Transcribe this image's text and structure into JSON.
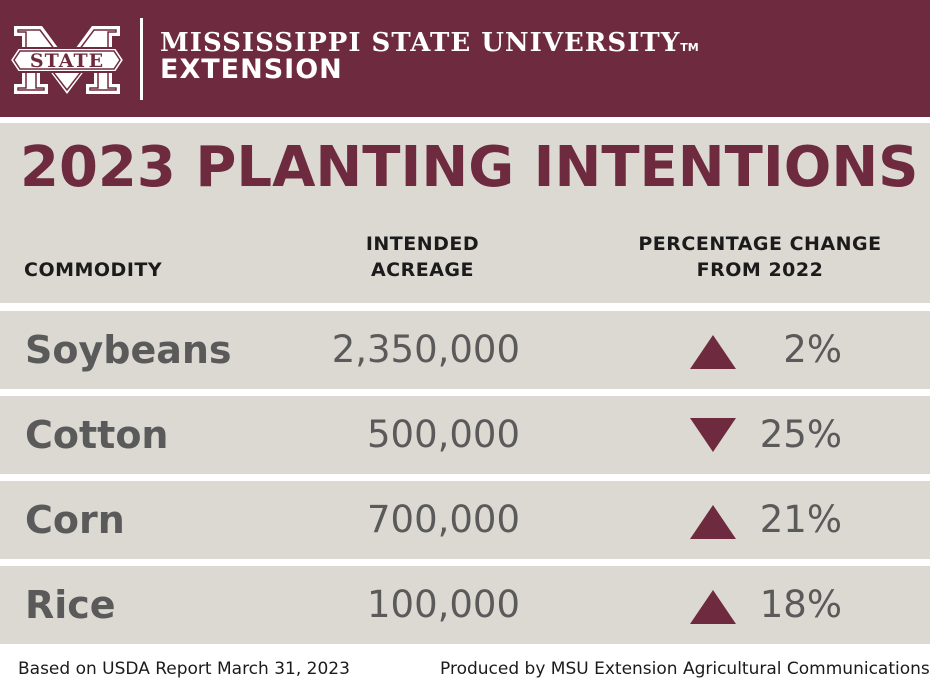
{
  "brand": {
    "university": "MISSISSIPPI STATE UNIVERSITY",
    "trademark": "TM",
    "unit": "EXTENSION",
    "logo_text": "STATE",
    "color_maroon": "#6e2a3e",
    "color_panel": "#dcd9d3"
  },
  "title": "2023 PLANTING INTENTIONS",
  "table": {
    "headers": {
      "commodity": "COMMODITY",
      "acreage_line1": "INTENDED",
      "acreage_line2": "ACREAGE",
      "pct_line1": "PERCENTAGE CHANGE",
      "pct_line2": "FROM 2022"
    },
    "rows": [
      {
        "commodity": "Soybeans",
        "acreage": "2,350,000",
        "direction": "up",
        "direction_icon": "triangle-up-icon",
        "change": "2%"
      },
      {
        "commodity": "Cotton",
        "acreage": "500,000",
        "direction": "down",
        "direction_icon": "triangle-down-icon",
        "change": "25%"
      },
      {
        "commodity": "Corn",
        "acreage": "700,000",
        "direction": "up",
        "direction_icon": "triangle-up-icon",
        "change": "21%"
      },
      {
        "commodity": "Rice",
        "acreage": "100,000",
        "direction": "up",
        "direction_icon": "triangle-up-icon",
        "change": "18%"
      }
    ]
  },
  "footer": {
    "source": "Based on USDA Report March 31, 2023",
    "credit": "Produced by MSU Extension Agricultural Communications"
  }
}
